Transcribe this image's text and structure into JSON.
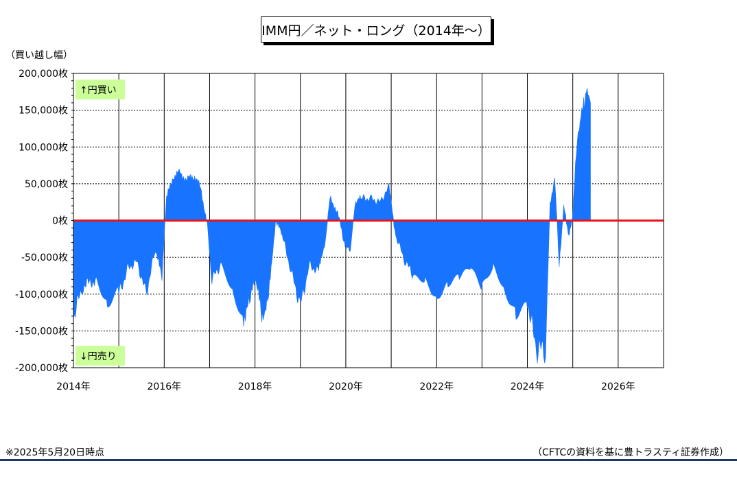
{
  "title": "IMM円／ネット・ロング（2014年～）",
  "unit_label": "（買い越し幅）",
  "footnote": "※2025年5月20日時点",
  "source": "（CFTCの資料を基に豊トラスティ証券作成）",
  "colors": {
    "fill": "#1874ff",
    "zero_line": "#e8141b",
    "grid": "#000000",
    "annotation_bg": "#ccff99"
  },
  "chart_data": {
    "type": "area",
    "title": "IMM円／ネット・ロング（2014年～）",
    "ylabel": "（買い越し幅）",
    "xlim": [
      2014.0,
      2027.0
    ],
    "ylim": [
      -200000,
      200000
    ],
    "grid": true,
    "x_tick_labels": [
      "2014年",
      "2016年",
      "2018年",
      "2020年",
      "2022年",
      "2024年",
      "2026年"
    ],
    "x_tick_values": [
      2014,
      2016,
      2018,
      2020,
      2022,
      2024,
      2026
    ],
    "y_tick_labels": [
      "200,000枚",
      "150,000枚",
      "100,000枚",
      "50,000枚",
      "0枚",
      "-50,000枚",
      "-100,000枚",
      "-150,000枚",
      "-200,000枚"
    ],
    "y_tick_values": [
      200000,
      150000,
      100000,
      50000,
      0,
      -50000,
      -100000,
      -150000,
      -200000
    ],
    "annotations": [
      {
        "text": "↑円買い"
      },
      {
        "text": "↓円売り"
      }
    ],
    "series": [
      {
        "x": [
          2014.0,
          2014.2,
          2014.5,
          2014.75,
          2015.0,
          2015.2,
          2015.4,
          2015.6,
          2015.8,
          2015.95,
          2016.05,
          2016.2,
          2016.35,
          2016.5,
          2016.65,
          2016.8,
          2016.95,
          2017.05,
          2017.25,
          2017.5,
          2017.75,
          2017.9,
          2018.0,
          2018.15,
          2018.3,
          2018.45,
          2018.6,
          2018.8,
          2019.0,
          2019.2,
          2019.4,
          2019.55,
          2019.65,
          2019.8,
          2019.95,
          2020.1,
          2020.2,
          2020.35,
          2020.55,
          2020.75,
          2020.95,
          2021.1,
          2021.3,
          2021.5,
          2021.75,
          2022.0,
          2022.25,
          2022.5,
          2022.75,
          2023.0,
          2023.25,
          2023.5,
          2023.75,
          2024.0,
          2024.2,
          2024.4,
          2024.5,
          2024.6,
          2024.7,
          2024.8,
          2024.9,
          2025.0,
          2025.1,
          2025.2,
          2025.3,
          2025.35,
          2025.39
        ],
        "values": [
          -130000,
          -90000,
          -80000,
          -120000,
          -100000,
          -65000,
          -55000,
          -100000,
          -40000,
          -75000,
          30000,
          60000,
          65000,
          55000,
          62000,
          45000,
          -5000,
          -80000,
          -60000,
          -90000,
          -130000,
          -110000,
          -75000,
          -130000,
          -105000,
          0,
          -20000,
          -70000,
          -115000,
          -60000,
          -70000,
          -25000,
          30000,
          15000,
          -25000,
          -45000,
          25000,
          30000,
          30000,
          25000,
          45000,
          -20000,
          -55000,
          -75000,
          -75000,
          -100000,
          -85000,
          -80000,
          -70000,
          -95000,
          -60000,
          -90000,
          -120000,
          -110000,
          -175000,
          -175000,
          20000,
          60000,
          -60000,
          20000,
          -20000,
          5000,
          120000,
          140000,
          178000,
          172000,
          160000
        ]
      }
    ]
  }
}
